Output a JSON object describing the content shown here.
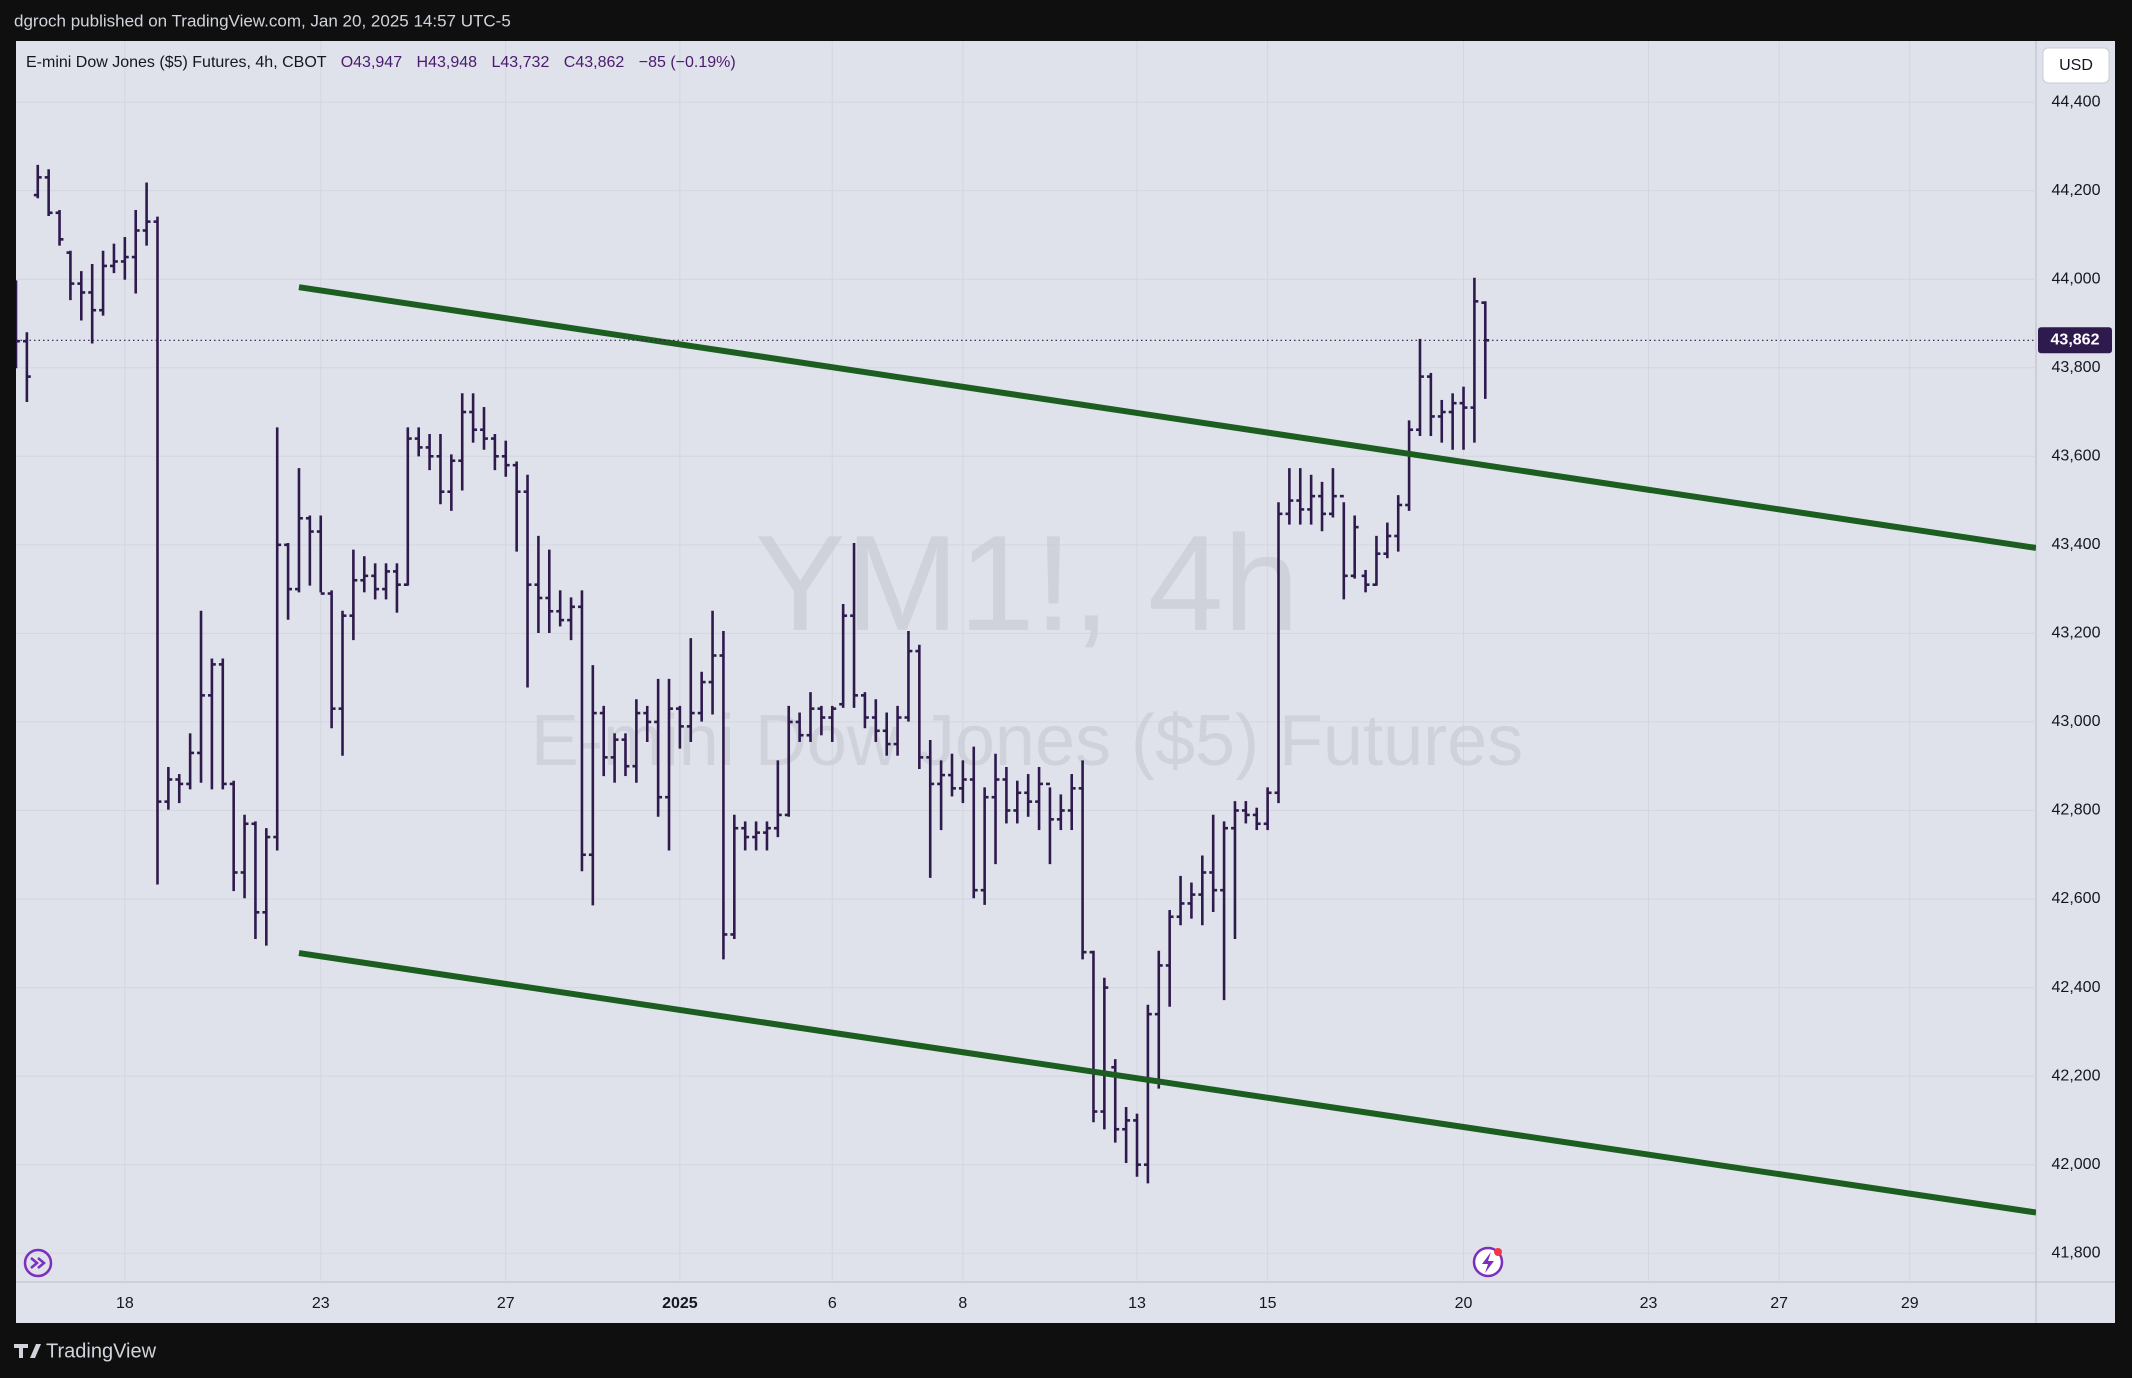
{
  "header": {
    "text": "dgroch published on TradingView.com, Jan 20, 2025 14:57 UTC-5"
  },
  "legend": {
    "symbol": "E-mini Dow Jones ($5) Futures, 4h, CBOT",
    "open": "O43,947",
    "high": "H43,948",
    "low": "L43,732",
    "close": "C43,862",
    "change": "−85 (−0.19%)"
  },
  "watermark": {
    "title": "YM1!, 4h",
    "subtitle": "E-mini Dow Jones ($5) Futures"
  },
  "currency_button": "USD",
  "footer": {
    "brand": "TradingView"
  },
  "chart_data": {
    "type": "ohlc",
    "color": "#2f1a4d",
    "grid": true,
    "open": [
      43990,
      43860,
      44190,
      44230,
      44150,
      44060,
      43990,
      43970,
      43930,
      44030,
      44040,
      44050,
      44110,
      44130,
      42820,
      42870,
      42860,
      42930,
      43060,
      43130,
      42860,
      42660,
      42770,
      42570,
      42740,
      43400,
      43300,
      43460,
      43430,
      43290,
      43030,
      43240,
      43320,
      43330,
      43300,
      43340,
      43310,
      43640,
      43620,
      43600,
      43520,
      43590,
      43700,
      43660,
      43640,
      43600,
      43580,
      43520,
      43310,
      43280,
      43250,
      43230,
      43260,
      42700,
      43020,
      42920,
      42960,
      42900,
      43020,
      43000,
      42830,
      43030,
      42990,
      43020,
      43090,
      43150,
      42520,
      42760,
      42740,
      42750,
      42760,
      42790,
      43000,
      42970,
      43030,
      43010,
      43040,
      43240,
      43060,
      43010,
      42980,
      42950,
      43010,
      43160,
      42920,
      42860,
      42880,
      42850,
      42870,
      42620,
      42830,
      42870,
      42800,
      42840,
      42820,
      42860,
      42780,
      42800,
      42850,
      42480,
      42120,
      42220,
      42080,
      42100,
      42000,
      42340,
      42450,
      42560,
      42590,
      42610,
      42660,
      42620,
      42760,
      42800,
      42790,
      42770,
      42840,
      43470,
      43500,
      43480,
      43510,
      43470,
      43510,
      43330,
      43330,
      43310,
      43380,
      43420,
      43490,
      43660,
      43780,
      43690,
      43700,
      43720,
      43710,
      43947
    ],
    "high": [
      43995,
      43878,
      44256,
      44246,
      44154,
      44062,
      44016,
      44032,
      44062,
      44078,
      44093,
      44154,
      44216,
      44139,
      42896,
      42880,
      42972,
      43249,
      43141,
      43141,
      42865,
      42788,
      42773,
      42758,
      43663,
      43402,
      43571,
      43464,
      43464,
      43295,
      43249,
      43387,
      43372,
      43356,
      43356,
      43356,
      43663,
      43663,
      43648,
      43648,
      43602,
      43740,
      43740,
      43709,
      43648,
      43633,
      43586,
      43556,
      43418,
      43387,
      43295,
      43279,
      43295,
      43126,
      43034,
      42972,
      42972,
      43049,
      43034,
      43095,
      43095,
      43034,
      43187,
      43111,
      43249,
      43203,
      42788,
      42773,
      42773,
      42773,
      42911,
      43034,
      43019,
      43065,
      43034,
      43034,
      43264,
      43402,
      43065,
      43049,
      43019,
      43034,
      43203,
      43172,
      42957,
      42911,
      42926,
      42911,
      42942,
      42850,
      42926,
      42896,
      42865,
      42880,
      42896,
      42850,
      42834,
      42880,
      42911,
      42481,
      42420,
      42236,
      42128,
      42113,
      42359,
      42481,
      42573,
      42650,
      42635,
      42696,
      42788,
      42773,
      42819,
      42819,
      42804,
      42850,
      43494,
      43571,
      43571,
      43556,
      43540,
      43571,
      43494,
      43464,
      43341,
      43418,
      43448,
      43510,
      43679,
      43863,
      43786,
      43725,
      43740,
      43755,
      44001,
      43948
    ],
    "low": [
      43801,
      43725,
      44185,
      44145,
      44078,
      43955,
      43909,
      43857,
      43920,
      44016,
      44001,
      43970,
      44078,
      42635,
      42804,
      42819,
      42850,
      42865,
      42850,
      42850,
      42620,
      42604,
      42512,
      42497,
      42712,
      43233,
      43295,
      43310,
      43295,
      42988,
      42926,
      43187,
      43295,
      43279,
      43279,
      43249,
      43310,
      43602,
      43571,
      43494,
      43479,
      43525,
      43633,
      43617,
      43571,
      43556,
      43387,
      43080,
      43203,
      43203,
      43218,
      43187,
      42665,
      42588,
      42880,
      42865,
      42880,
      42865,
      42957,
      42788,
      42712,
      42942,
      42957,
      43003,
      43019,
      42466,
      42512,
      42712,
      42712,
      42712,
      42742,
      42788,
      42957,
      42957,
      42972,
      42957,
      43034,
      43034,
      42988,
      42957,
      42926,
      42926,
      43003,
      42896,
      42650,
      42758,
      42834,
      42819,
      42604,
      42589,
      42681,
      42773,
      42773,
      42788,
      42758,
      42681,
      42758,
      42758,
      42466,
      42098,
      42082,
      42052,
      42006,
      41975,
      41960,
      42174,
      42359,
      42543,
      42558,
      42543,
      42573,
      42374,
      42512,
      42773,
      42758,
      42758,
      42819,
      43448,
      43448,
      43448,
      43433,
      43464,
      43279,
      43326,
      43295,
      43310,
      43372,
      43387,
      43479,
      43648,
      43648,
      43633,
      43617,
      43617,
      43633,
      43732
    ],
    "close": [
      43860,
      43780,
      44230,
      44150,
      44090,
      43990,
      43970,
      43930,
      44030,
      44040,
      44050,
      44110,
      44130,
      42820,
      42870,
      42860,
      42930,
      43060,
      43130,
      42860,
      42660,
      42770,
      42570,
      42740,
      43400,
      43300,
      43460,
      43430,
      43290,
      43030,
      43240,
      43320,
      43330,
      43300,
      43340,
      43310,
      43640,
      43620,
      43600,
      43520,
      43590,
      43700,
      43660,
      43640,
      43600,
      43580,
      43520,
      43310,
      43280,
      43250,
      43230,
      43260,
      42700,
      43020,
      42920,
      42960,
      42900,
      43020,
      43000,
      42830,
      43030,
      42990,
      43020,
      43090,
      43150,
      42520,
      42760,
      42740,
      42750,
      42760,
      42790,
      43000,
      42970,
      43030,
      43010,
      43030,
      43240,
      43060,
      43010,
      42980,
      42950,
      43010,
      43160,
      42920,
      42860,
      42880,
      42850,
      42870,
      42620,
      42830,
      42870,
      42800,
      42840,
      42820,
      42860,
      42780,
      42800,
      42850,
      42480,
      42120,
      42400,
      42080,
      42100,
      42000,
      42340,
      42450,
      42560,
      42590,
      42610,
      42660,
      42620,
      42760,
      42800,
      42790,
      42770,
      42840,
      43470,
      43500,
      43480,
      43510,
      43470,
      43510,
      43330,
      43440,
      43310,
      43380,
      43420,
      43490,
      43660,
      43780,
      43690,
      43700,
      43720,
      43710,
      43950,
      43862
    ],
    "xlim": [
      0,
      185.6
    ],
    "xticks": [
      {
        "value": 10,
        "label": "18"
      },
      {
        "value": 28,
        "label": "23"
      },
      {
        "value": 45,
        "label": "27"
      },
      {
        "value": 61,
        "label": "2025"
      },
      {
        "value": 75,
        "label": "6"
      },
      {
        "value": 87,
        "label": "8"
      },
      {
        "value": 103,
        "label": "13"
      },
      {
        "value": 115,
        "label": "15"
      },
      {
        "value": 133,
        "label": "20"
      },
      {
        "value": 150,
        "label": "23"
      },
      {
        "value": 162,
        "label": "27"
      },
      {
        "value": 174,
        "label": "29"
      }
    ],
    "ylim": [
      41735,
      44538
    ],
    "yticks": [
      {
        "value": 41800,
        "label": "41,800"
      },
      {
        "value": 42000,
        "label": "42,000"
      },
      {
        "value": 42200,
        "label": "42,200"
      },
      {
        "value": 42400,
        "label": "42,400"
      },
      {
        "value": 42600,
        "label": "42,600"
      },
      {
        "value": 42800,
        "label": "42,800"
      },
      {
        "value": 43000,
        "label": "43,000"
      },
      {
        "value": 43200,
        "label": "43,200"
      },
      {
        "value": 43400,
        "label": "43,400"
      },
      {
        "value": 43600,
        "label": "43,600"
      },
      {
        "value": 43800,
        "label": "43,800"
      },
      {
        "value": 44000,
        "label": "44,000"
      },
      {
        "value": 44200,
        "label": "44,200"
      },
      {
        "value": 44400,
        "label": "44,400"
      }
    ],
    "last_price": {
      "value": 43862,
      "label": "43,862"
    },
    "trend_lines": [
      {
        "color": "#1b5e20",
        "x": [
          26,
          185.6
        ],
        "y": [
          43982,
          43393
        ]
      },
      {
        "color": "#1b5e20",
        "x": [
          26,
          185.6
        ],
        "y": [
          42478,
          41892
        ]
      }
    ]
  }
}
